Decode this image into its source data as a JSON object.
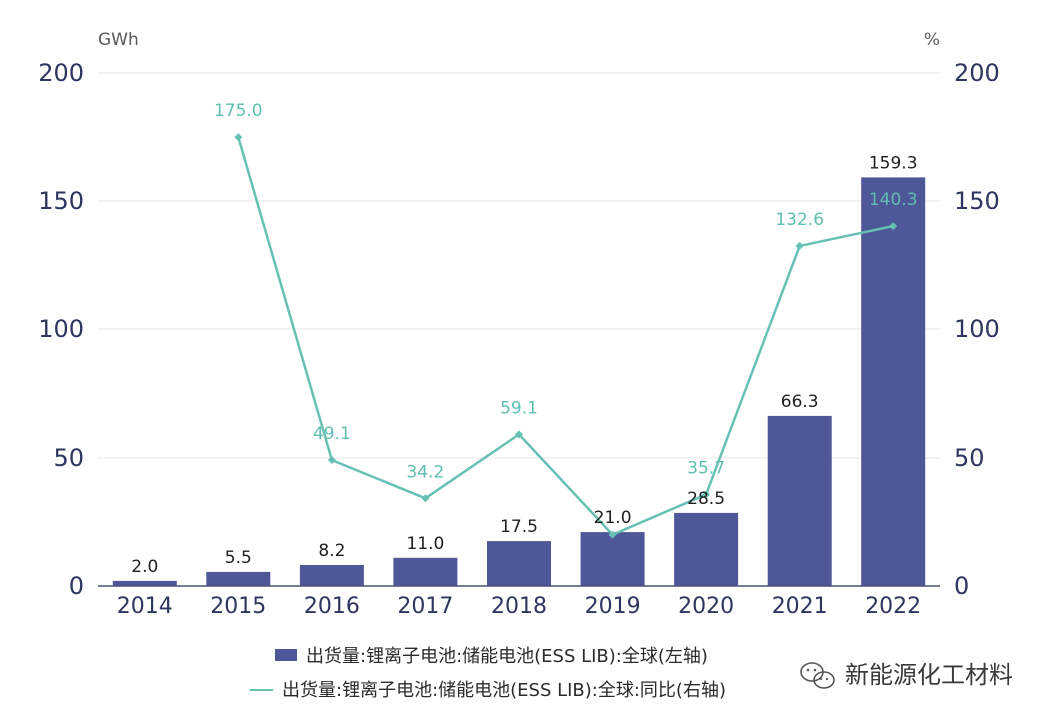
{
  "chart_data": {
    "type": "bar",
    "categories": [
      "2014",
      "2015",
      "2016",
      "2017",
      "2018",
      "2019",
      "2020",
      "2021",
      "2022"
    ],
    "series": [
      {
        "name": "出货量:锂离子电池:储能电池(ESS LIB):全球(左轴)",
        "type": "bar",
        "axis": "left",
        "values": [
          2.0,
          5.5,
          8.2,
          11.0,
          17.5,
          21.0,
          28.5,
          66.3,
          159.3
        ],
        "labels": [
          "2.0",
          "5.5",
          "8.2",
          "11.0",
          "17.5",
          "21.0",
          "28.5",
          "66.3",
          "159.3"
        ]
      },
      {
        "name": "出货量:锂离子电池:储能电池(ESS LIB):全球:同比(右轴)",
        "type": "line",
        "axis": "right",
        "values": [
          null,
          175.0,
          49.1,
          34.2,
          59.1,
          20.0,
          35.7,
          132.6,
          140.3
        ],
        "labels": [
          "",
          "175.0",
          "49.1",
          "34.2",
          "59.1",
          "",
          "35.7",
          "132.6",
          "140.3"
        ]
      }
    ],
    "left_unit": "GWh",
    "right_unit": "%",
    "ylim_left": [
      0,
      200
    ],
    "ylim_right": [
      0,
      200
    ],
    "yticks_left": [
      "0",
      "50",
      "100",
      "150",
      "200"
    ],
    "yticks_right": [
      "0",
      "50",
      "100",
      "150",
      "200"
    ],
    "grid": true,
    "legend_position": "bottom",
    "colors": {
      "bar": "#4e5797",
      "line": "#66c1b4",
      "axis_text": "#2e3560"
    }
  },
  "watermark": {
    "text": "新能源化工材料",
    "icon": "wechat-icon"
  }
}
